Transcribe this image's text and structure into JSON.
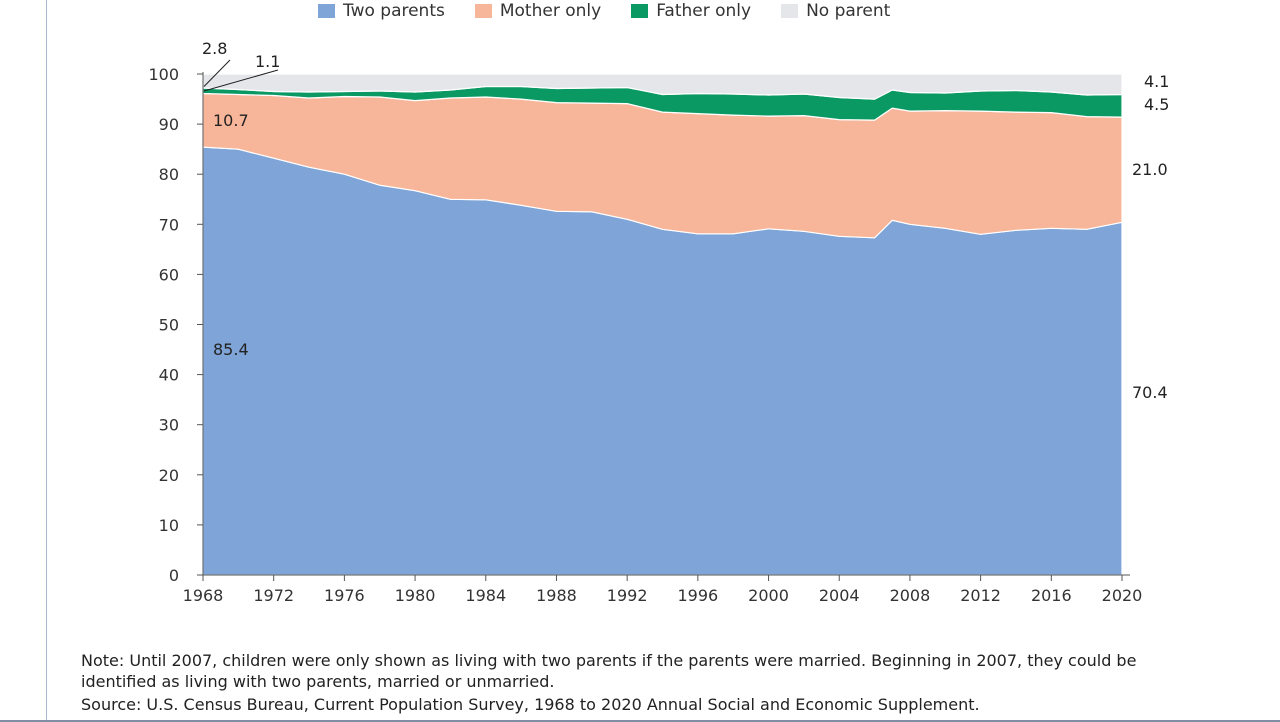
{
  "chart_data": {
    "type": "area",
    "stacked": true,
    "title": "",
    "xlabel": "",
    "ylabel": "",
    "ylim": [
      0,
      100
    ],
    "yticks": [
      "0",
      "10",
      "20",
      "30",
      "40",
      "50",
      "60",
      "70",
      "80",
      "90",
      "100"
    ],
    "xticks": [
      "1968",
      "1972",
      "1976",
      "1980",
      "1984",
      "1988",
      "1992",
      "1996",
      "2000",
      "2004",
      "2008",
      "2012",
      "2016",
      "2020"
    ],
    "legend_position": "top",
    "grid": false,
    "x": [
      1968,
      1970,
      1972,
      1974,
      1976,
      1978,
      1980,
      1982,
      1984,
      1986,
      1988,
      1990,
      1992,
      1994,
      1996,
      1998,
      2000,
      2002,
      2004,
      2006,
      2007,
      2008,
      2010,
      2012,
      2014,
      2016,
      2018,
      2020
    ],
    "series": [
      {
        "name": "Two parents",
        "color": "#7fa5d8",
        "values": [
          85.4,
          85.0,
          83.2,
          81.4,
          80.0,
          77.8,
          76.7,
          75.0,
          74.9,
          73.8,
          72.6,
          72.5,
          71.0,
          69.0,
          68.1,
          68.1,
          69.1,
          68.6,
          67.6,
          67.3,
          70.8,
          70.0,
          69.2,
          68.0,
          68.8,
          69.2,
          69.0,
          70.4
        ]
      },
      {
        "name": "Mother only",
        "color": "#f7b599",
        "values": [
          10.7,
          10.9,
          12.5,
          13.8,
          15.5,
          17.6,
          18.0,
          20.2,
          20.5,
          21.2,
          21.7,
          21.7,
          23.1,
          23.4,
          24.0,
          23.7,
          22.5,
          23.1,
          23.3,
          23.5,
          22.4,
          22.6,
          23.5,
          24.6,
          23.6,
          23.1,
          22.5,
          21.0
        ]
      },
      {
        "name": "Father only",
        "color": "#0a9962",
        "values": [
          1.1,
          1.0,
          0.8,
          1.2,
          1.0,
          1.2,
          1.7,
          1.6,
          2.1,
          2.5,
          2.8,
          3.0,
          3.2,
          3.5,
          4.0,
          4.2,
          4.2,
          4.3,
          4.4,
          4.2,
          3.6,
          3.7,
          3.5,
          4.0,
          4.3,
          4.1,
          4.3,
          4.5
        ]
      },
      {
        "name": "No parent",
        "color": "#e4e6ea",
        "values": [
          2.8,
          3.1,
          3.5,
          3.6,
          3.5,
          3.4,
          3.6,
          3.2,
          2.5,
          2.5,
          2.9,
          2.8,
          2.7,
          4.1,
          3.9,
          4.0,
          4.2,
          4.0,
          4.7,
          5.0,
          3.2,
          3.7,
          3.8,
          3.4,
          3.3,
          3.6,
          4.2,
          4.1
        ]
      }
    ],
    "annotations": {
      "start": {
        "two_parents": "85.4",
        "mother_only": "10.7",
        "father_only": "1.1",
        "no_parent": "2.8"
      },
      "end": {
        "two_parents": "70.4",
        "mother_only": "21.0",
        "father_only": "4.5",
        "no_parent": "4.1"
      }
    }
  },
  "notes": {
    "note": "Note: Until 2007, children were only shown as living with two parents if the parents were married. Beginning in 2007, they could be identified as living with two parents, married or unmarried.",
    "source": "Source: U.S. Census Bureau, Current Population Survey, 1968 to 2020 Annual Social and Economic Supplement."
  }
}
